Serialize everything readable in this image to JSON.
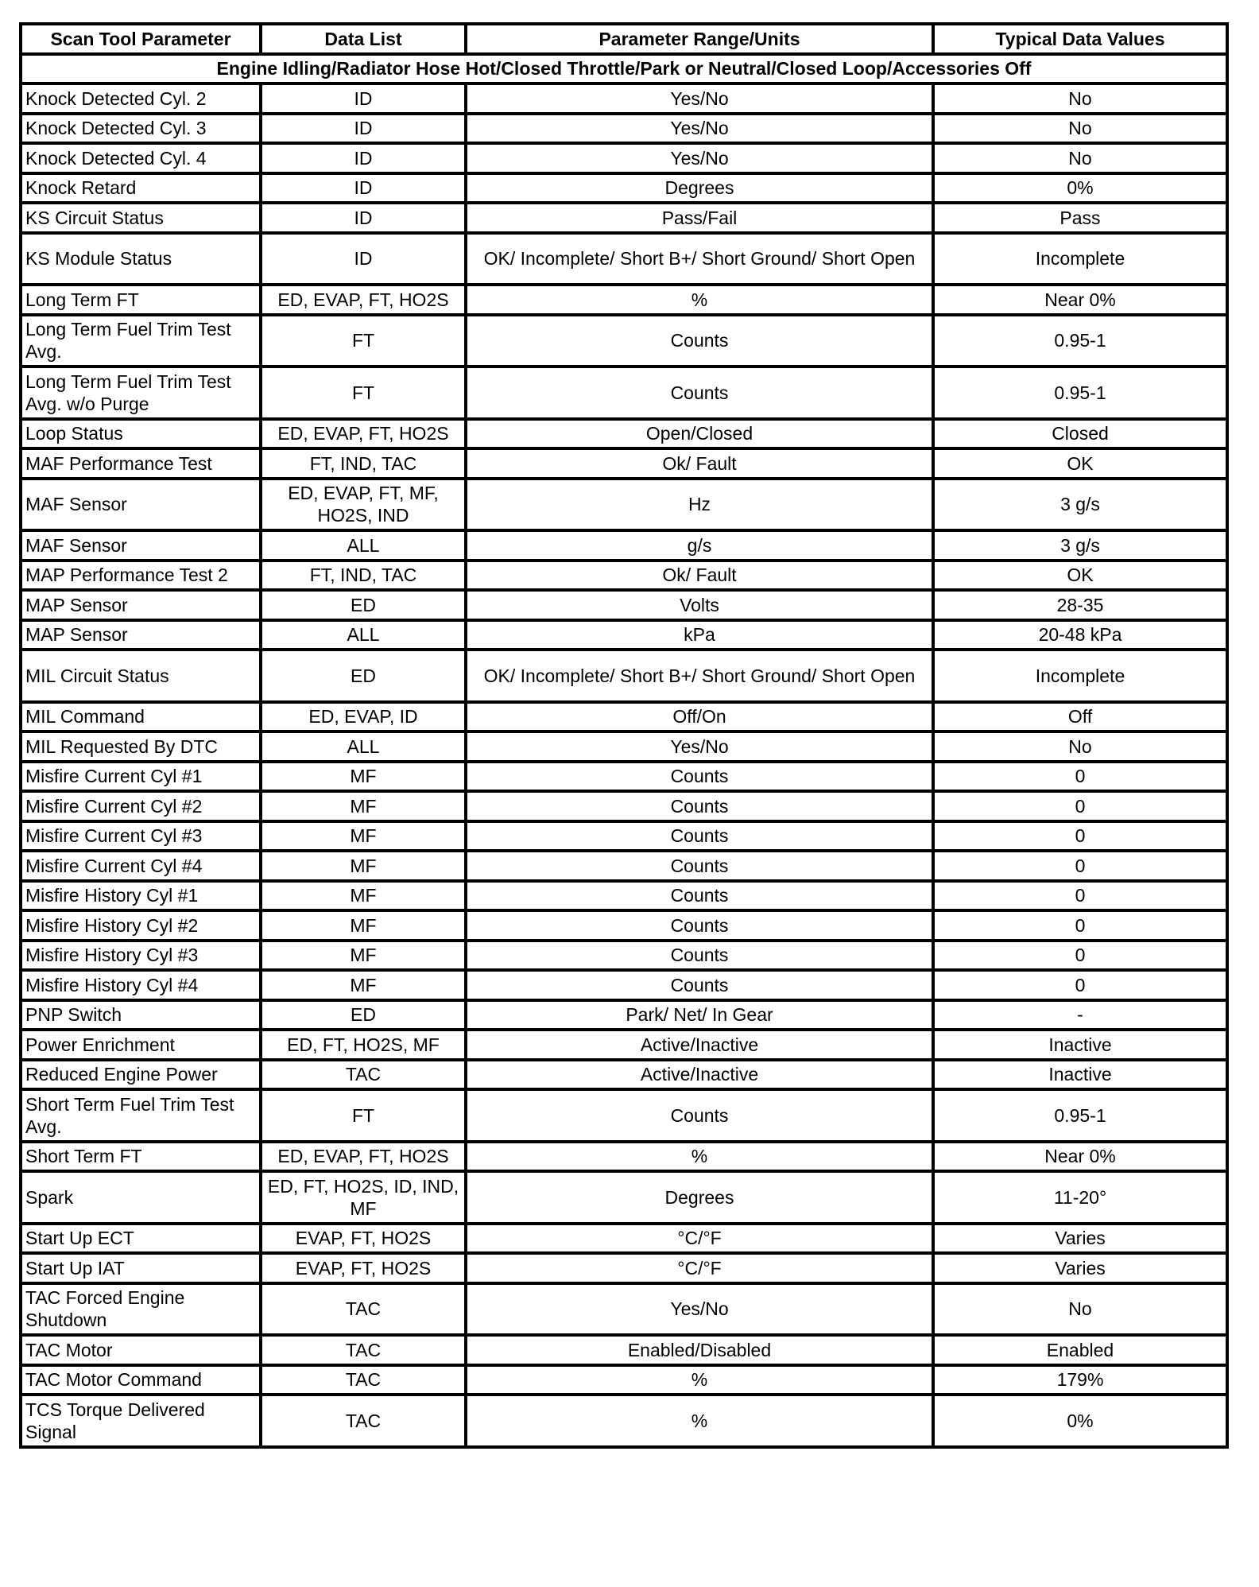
{
  "table": {
    "headers": [
      "Scan Tool Parameter",
      "Data List",
      "Parameter Range/Units",
      "Typical Data Values"
    ],
    "section": "Engine Idling/Radiator Hose Hot/Closed Throttle/Park or Neutral/Closed Loop/Accessories Off",
    "rows": [
      [
        "Knock Detected Cyl. 2",
        "ID",
        "Yes/No",
        "No"
      ],
      [
        "Knock Detected Cyl. 3",
        "ID",
        "Yes/No",
        "No"
      ],
      [
        "Knock Detected Cyl. 4",
        "ID",
        "Yes/No",
        "No"
      ],
      [
        "Knock Retard",
        "ID",
        "Degrees",
        "0%"
      ],
      [
        "KS Circuit Status",
        "ID",
        "Pass/Fail",
        "Pass"
      ],
      [
        "KS Module Status",
        "ID",
        "OK/ Incomplete/ Short B+/ Short Ground/ Short Open",
        "Incomplete"
      ],
      [
        "Long Term FT",
        "ED, EVAP, FT, HO2S",
        "%",
        "Near 0%"
      ],
      [
        "Long Term Fuel Trim Test Avg.",
        "FT",
        "Counts",
        "0.95-1"
      ],
      [
        "Long Term Fuel Trim Test Avg. w/o Purge",
        "FT",
        "Counts",
        "0.95-1"
      ],
      [
        "Loop Status",
        "ED, EVAP, FT, HO2S",
        "Open/Closed",
        "Closed"
      ],
      [
        "MAF Performance Test",
        "FT, IND, TAC",
        "Ok/ Fault",
        "OK"
      ],
      [
        "MAF Sensor",
        "ED, EVAP, FT, MF, HO2S, IND",
        "Hz",
        "3 g/s"
      ],
      [
        "MAF Sensor",
        "ALL",
        "g/s",
        "3 g/s"
      ],
      [
        "MAP Performance Test 2",
        "FT, IND, TAC",
        "Ok/ Fault",
        "OK"
      ],
      [
        "MAP Sensor",
        "ED",
        "Volts",
        "28-35"
      ],
      [
        "MAP Sensor",
        "ALL",
        "kPa",
        "20-48 kPa"
      ],
      [
        "MIL Circuit Status",
        "ED",
        "OK/ Incomplete/ Short B+/ Short Ground/ Short Open",
        "Incomplete"
      ],
      [
        "MIL Command",
        "ED, EVAP, ID",
        "Off/On",
        "Off"
      ],
      [
        "MIL Requested By DTC",
        "ALL",
        "Yes/No",
        "No"
      ],
      [
        "Misfire Current Cyl #1",
        "MF",
        "Counts",
        "0"
      ],
      [
        "Misfire Current Cyl #2",
        "MF",
        "Counts",
        "0"
      ],
      [
        "Misfire Current Cyl #3",
        "MF",
        "Counts",
        "0"
      ],
      [
        "Misfire Current Cyl #4",
        "MF",
        "Counts",
        "0"
      ],
      [
        "Misfire History Cyl #1",
        "MF",
        "Counts",
        "0"
      ],
      [
        "Misfire History Cyl #2",
        "MF",
        "Counts",
        "0"
      ],
      [
        "Misfire History Cyl #3",
        "MF",
        "Counts",
        "0"
      ],
      [
        "Misfire History Cyl #4",
        "MF",
        "Counts",
        "0"
      ],
      [
        "PNP Switch",
        "ED",
        "Park/ Net/ In Gear",
        "-"
      ],
      [
        "Power Enrichment",
        "ED, FT, HO2S, MF",
        "Active/Inactive",
        "Inactive"
      ],
      [
        "Reduced Engine Power",
        "TAC",
        "Active/Inactive",
        "Inactive"
      ],
      [
        "Short Term Fuel Trim Test Avg.",
        "FT",
        "Counts",
        "0.95-1"
      ],
      [
        "Short Term FT",
        "ED, EVAP, FT, HO2S",
        "%",
        "Near 0%"
      ],
      [
        "Spark",
        "ED, FT, HO2S, ID, IND, MF",
        "Degrees",
        "11-20°"
      ],
      [
        "Start Up ECT",
        "EVAP, FT, HO2S",
        "°C/°F",
        "Varies"
      ],
      [
        "Start Up IAT",
        "EVAP, FT, HO2S",
        "°C/°F",
        "Varies"
      ],
      [
        "TAC Forced Engine Shutdown",
        "TAC",
        "Yes/No",
        "No"
      ],
      [
        "TAC Motor",
        "TAC",
        "Enabled/Disabled",
        "Enabled"
      ],
      [
        "TAC Motor Command",
        "TAC",
        "%",
        "179%"
      ],
      [
        "TCS Torque Delivered Signal",
        "TAC",
        "%",
        "0%"
      ]
    ]
  }
}
